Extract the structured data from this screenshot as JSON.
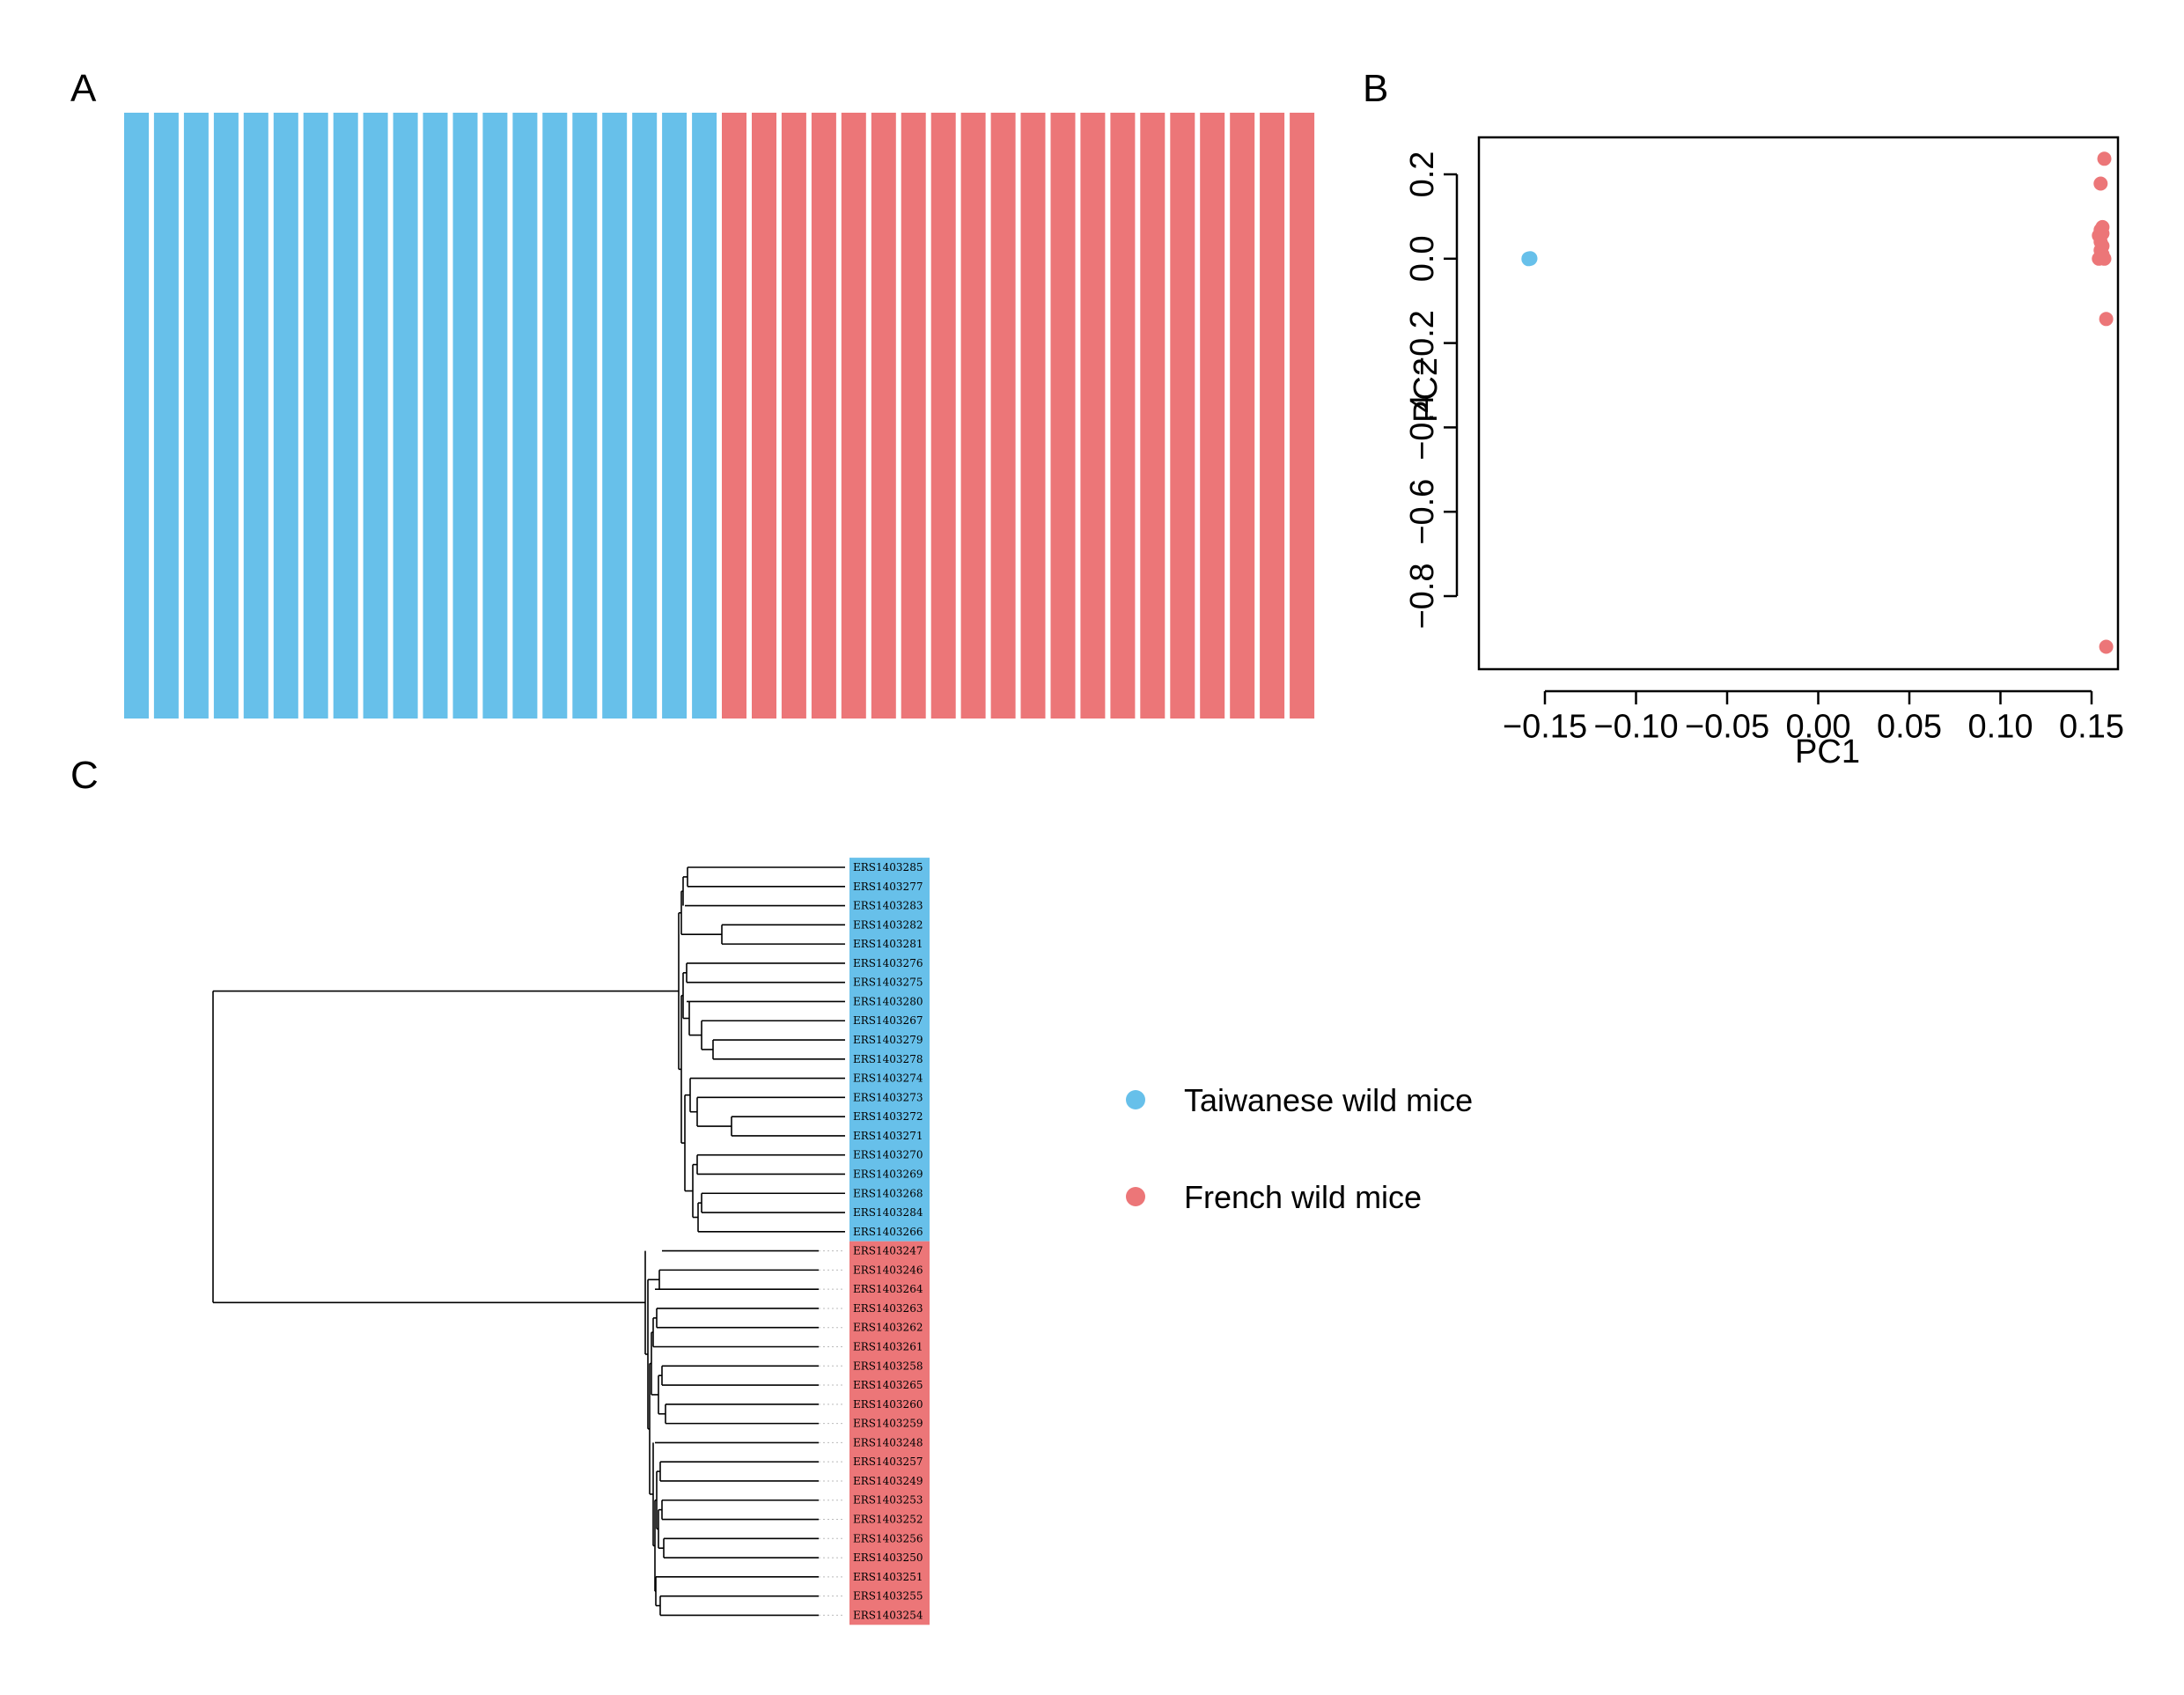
{
  "panels": {
    "a": "A",
    "b": "B",
    "c": "C"
  },
  "colors": {
    "taiwan": "#67C0EA",
    "french": "#EC7678"
  },
  "legend": {
    "items": [
      {
        "label": "Taiwanese wild mice",
        "color": "#67C0EA"
      },
      {
        "label": "French wild mice",
        "color": "#EC7678"
      }
    ]
  },
  "chart_data": [
    {
      "type": "bar",
      "panel": "A",
      "title": "",
      "stacked": true,
      "n_individuals": 40,
      "series": [
        {
          "color": "#67C0EA",
          "values": [
            1,
            1,
            1,
            1,
            1,
            1,
            1,
            1,
            1,
            1,
            1,
            1,
            1,
            1,
            1,
            1,
            1,
            1,
            1,
            1,
            0,
            0,
            0,
            0,
            0,
            0,
            0,
            0,
            0,
            0,
            0,
            0,
            0,
            0,
            0,
            0,
            0,
            0,
            0,
            0
          ]
        },
        {
          "color": "#EC7678",
          "values": [
            0,
            0,
            0,
            0,
            0,
            0,
            0,
            0,
            0,
            0,
            0,
            0,
            0,
            0,
            0,
            0,
            0,
            0,
            0,
            0,
            1,
            1,
            1,
            1,
            1,
            1,
            1,
            1,
            1,
            1,
            1,
            1,
            1,
            1,
            1,
            1,
            1,
            1,
            1,
            1
          ]
        }
      ],
      "ylim": [
        0,
        1
      ]
    },
    {
      "type": "scatter",
      "panel": "B",
      "xlabel": "PC1",
      "ylabel": "PC2",
      "xlim": [
        -0.17,
        0.165
      ],
      "ylim": [
        -0.97,
        0.28
      ],
      "x_ticks": [
        "-0.15",
        "-0.10",
        "-0.05",
        "0.00",
        "0.05",
        "0.10",
        "0.15"
      ],
      "y_ticks": [
        "0.2",
        "0.0",
        "-0.2",
        "-0.4",
        "-0.6",
        "-0.8"
      ],
      "tick_prefix": "−",
      "series": [
        {
          "color": "#67C0EA",
          "points": [
            [
              -0.159,
              0.0
            ],
            [
              -0.159,
              0.0
            ],
            [
              -0.158,
              0.001
            ],
            [
              -0.159,
              -0.001
            ],
            [
              -0.158,
              0.0
            ]
          ]
        },
        {
          "color": "#EC7678",
          "points": [
            [
              0.157,
              0.237
            ],
            [
              0.155,
              0.178
            ],
            [
              0.156,
              0.075
            ],
            [
              0.155,
              0.068
            ],
            [
              0.156,
              0.06
            ],
            [
              0.154,
              0.055
            ],
            [
              0.155,
              0.04
            ],
            [
              0.156,
              0.03
            ],
            [
              0.155,
              0.02
            ],
            [
              0.156,
              0.01
            ],
            [
              0.155,
              0.005
            ],
            [
              0.154,
              0.0
            ],
            [
              0.157,
              0.0
            ],
            [
              0.158,
              -0.143
            ],
            [
              0.158,
              -0.92
            ]
          ]
        }
      ]
    },
    {
      "type": "dendrogram",
      "panel": "C",
      "groups": [
        {
          "color": "#67C0EA",
          "tips": [
            "ERS1403285",
            "ERS1403277",
            "ERS1403283",
            "ERS1403282",
            "ERS1403281",
            "ERS1403276",
            "ERS1403275",
            "ERS1403280",
            "ERS1403267",
            "ERS1403279",
            "ERS1403278",
            "ERS1403274",
            "ERS1403273",
            "ERS1403272",
            "ERS1403271",
            "ERS1403270",
            "ERS1403269",
            "ERS1403268",
            "ERS1403284",
            "ERS1403266"
          ]
        },
        {
          "color": "#EC7678",
          "tips": [
            "ERS1403247",
            "ERS1403246",
            "ERS1403264",
            "ERS1403263",
            "ERS1403262",
            "ERS1403261",
            "ERS1403258",
            "ERS1403265",
            "ERS1403260",
            "ERS1403259",
            "ERS1403248",
            "ERS1403257",
            "ERS1403249",
            "ERS1403253",
            "ERS1403252",
            "ERS1403256",
            "ERS1403250",
            "ERS1403251",
            "ERS1403255",
            "ERS1403254"
          ]
        }
      ]
    }
  ]
}
